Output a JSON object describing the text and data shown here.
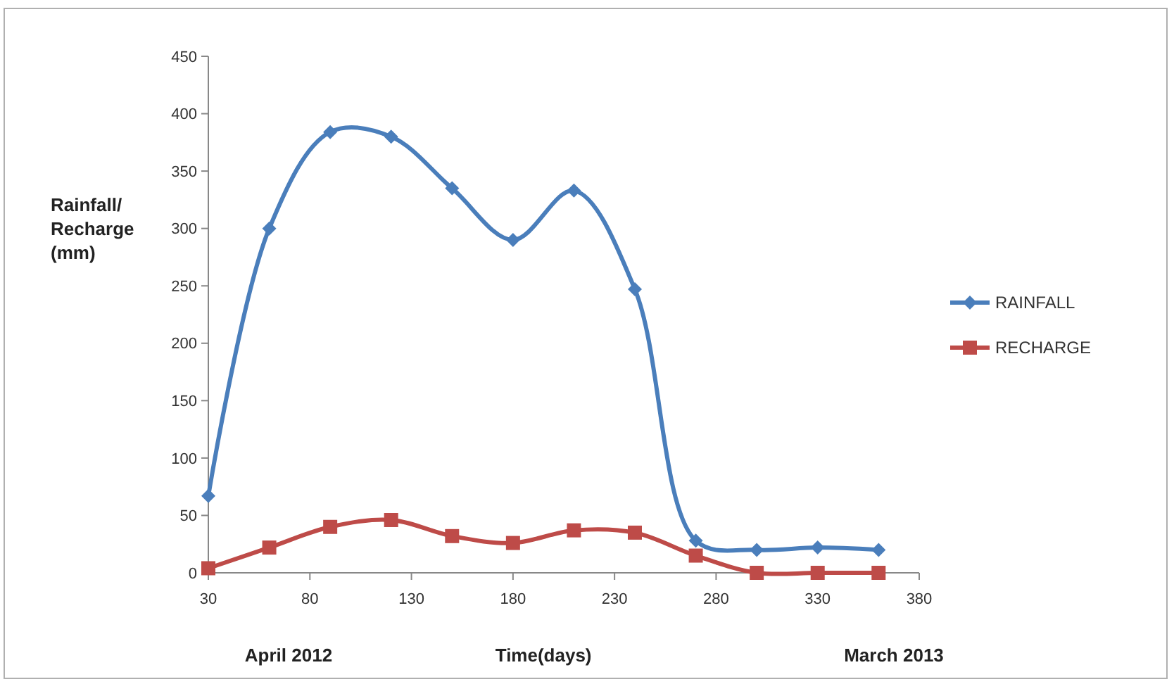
{
  "chart_data": {
    "type": "line",
    "ylabel": "Rainfall/\nRecharge\n(mm)",
    "xlabel": "Time(days)",
    "x": [
      30,
      60,
      90,
      120,
      150,
      180,
      210,
      240,
      270,
      300,
      330,
      360
    ],
    "series": [
      {
        "name": "RAINFALL",
        "color": "#4a7ebb",
        "marker": "diamond",
        "values": [
          67,
          300,
          384,
          380,
          335,
          290,
          333,
          247,
          28,
          20,
          22,
          20
        ]
      },
      {
        "name": "RECHARGE",
        "color": "#be4b48",
        "marker": "square",
        "values": [
          4,
          22,
          40,
          46,
          32,
          26,
          37,
          35,
          15,
          0,
          0,
          0
        ]
      }
    ],
    "xlim": [
      30,
      380
    ],
    "xticks": [
      30,
      80,
      130,
      180,
      230,
      280,
      330,
      380
    ],
    "ylim": [
      0,
      450
    ],
    "yticks": [
      0,
      50,
      100,
      150,
      200,
      250,
      300,
      350,
      400,
      450
    ],
    "grid": false,
    "legend": "right",
    "line_style": "solid",
    "annotations": [
      "April 2012",
      "March 2013"
    ]
  }
}
